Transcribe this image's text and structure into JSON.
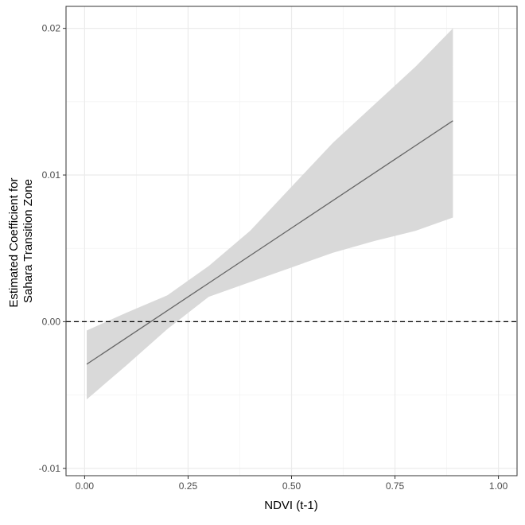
{
  "chart_data": {
    "type": "line",
    "title": "",
    "xlabel": "NDVI (t-1)",
    "ylabel_lines": [
      "Estimated Coefficient for",
      "Sahara Transition Zone"
    ],
    "xlim": [
      -0.045,
      1.045
    ],
    "ylim": [
      -0.0105,
      0.0215
    ],
    "xticks": [
      0,
      0.25,
      0.5,
      0.75,
      1
    ],
    "xtick_labels": [
      "0.00",
      "0.25",
      "0.50",
      "0.75",
      "1.00"
    ],
    "yticks": [
      -0.01,
      0,
      0.01,
      0.02
    ],
    "ytick_labels": [
      "-0.01",
      "0.00",
      "0.01",
      "0.02"
    ],
    "grid": true,
    "reference_line": {
      "y": 0,
      "style": "dashed"
    },
    "series": [
      {
        "name": "estimate",
        "x": [
          0.005,
          0.89
        ],
        "y": [
          -0.0029,
          0.0137
        ],
        "color": "#666666"
      }
    ],
    "ribbon": {
      "x": [
        0.005,
        0.1,
        0.2,
        0.3,
        0.4,
        0.5,
        0.6,
        0.7,
        0.8,
        0.89
      ],
      "upper": [
        -0.0006,
        0.0006,
        0.0018,
        0.0038,
        0.0062,
        0.0092,
        0.0122,
        0.0148,
        0.0174,
        0.02
      ],
      "lower": [
        -0.0053,
        -0.003,
        -0.0005,
        0.0017,
        0.0027,
        0.0037,
        0.0047,
        0.0055,
        0.0062,
        0.0071
      ],
      "color": "#d9d9d9"
    }
  }
}
